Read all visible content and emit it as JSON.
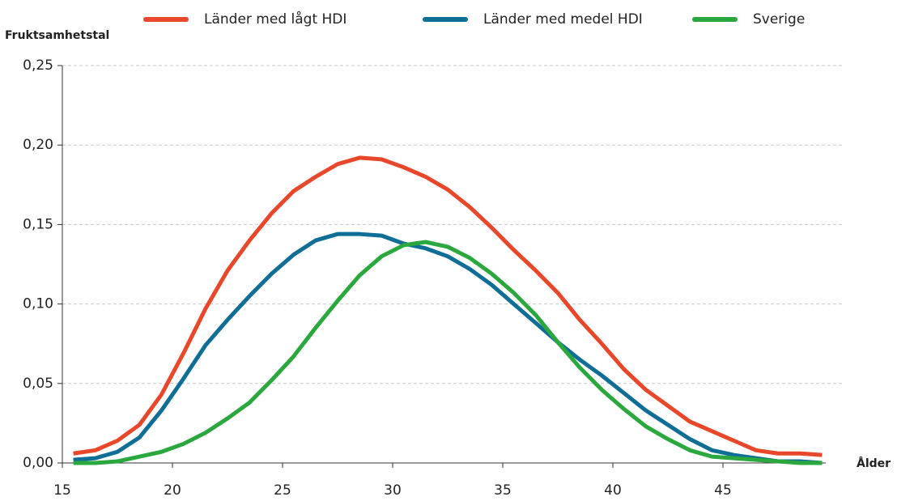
{
  "chart_data": {
    "type": "line",
    "y_label": "Fruktsamhetstal",
    "x_label": "Ålder",
    "x": [
      15.5,
      16.5,
      17.5,
      18.5,
      19.5,
      20.5,
      21.5,
      22.5,
      23.5,
      24.5,
      25.5,
      26.5,
      27.5,
      28.5,
      29.5,
      30.5,
      31.5,
      32.5,
      33.5,
      34.5,
      35.5,
      36.5,
      37.5,
      38.5,
      39.5,
      40.5,
      41.5,
      42.5,
      43.5,
      44.5,
      45.5,
      46.5,
      47.5,
      48.5,
      49.5
    ],
    "series": [
      {
        "name": "Länder med lågt HDI",
        "color": "#e8472a",
        "values": [
          0.006,
          0.008,
          0.014,
          0.024,
          0.043,
          0.069,
          0.097,
          0.121,
          0.14,
          0.157,
          0.171,
          0.18,
          0.188,
          0.192,
          0.191,
          0.186,
          0.18,
          0.172,
          0.161,
          0.148,
          0.134,
          0.121,
          0.107,
          0.09,
          0.075,
          0.059,
          0.046,
          0.036,
          0.026,
          0.02,
          0.014,
          0.008,
          0.006,
          0.006,
          0.005
        ]
      },
      {
        "name": "Länder med medel HDI",
        "color": "#0f6e96",
        "values": [
          0.002,
          0.003,
          0.007,
          0.016,
          0.033,
          0.053,
          0.074,
          0.09,
          0.105,
          0.119,
          0.131,
          0.14,
          0.144,
          0.144,
          0.143,
          0.138,
          0.135,
          0.13,
          0.122,
          0.112,
          0.1,
          0.088,
          0.076,
          0.065,
          0.055,
          0.044,
          0.033,
          0.024,
          0.015,
          0.008,
          0.005,
          0.003,
          0.001,
          0.001,
          0.0
        ]
      },
      {
        "name": "Sverige",
        "color": "#2aa83e",
        "values": [
          0.0,
          0.0,
          0.001,
          0.004,
          0.007,
          0.012,
          0.019,
          0.028,
          0.038,
          0.052,
          0.067,
          0.085,
          0.102,
          0.118,
          0.13,
          0.137,
          0.139,
          0.136,
          0.129,
          0.119,
          0.107,
          0.093,
          0.076,
          0.06,
          0.046,
          0.034,
          0.023,
          0.015,
          0.008,
          0.004,
          0.003,
          0.002,
          0.001,
          0.0,
          0.0
        ]
      }
    ],
    "xlim": [
      15,
      50
    ],
    "xticks": [
      15,
      20,
      25,
      30,
      35,
      40,
      45
    ],
    "ylim": [
      0,
      0.25
    ],
    "yticks": [
      {
        "value": 0,
        "label": "0,00"
      },
      {
        "value": 0.05,
        "label": "0,05"
      },
      {
        "value": 0.1,
        "label": "0,10"
      },
      {
        "value": 0.15,
        "label": "0,15"
      },
      {
        "value": 0.2,
        "label": "0,20"
      },
      {
        "value": 0.25,
        "label": "0,25"
      }
    ],
    "grid": true,
    "legend": "top"
  }
}
